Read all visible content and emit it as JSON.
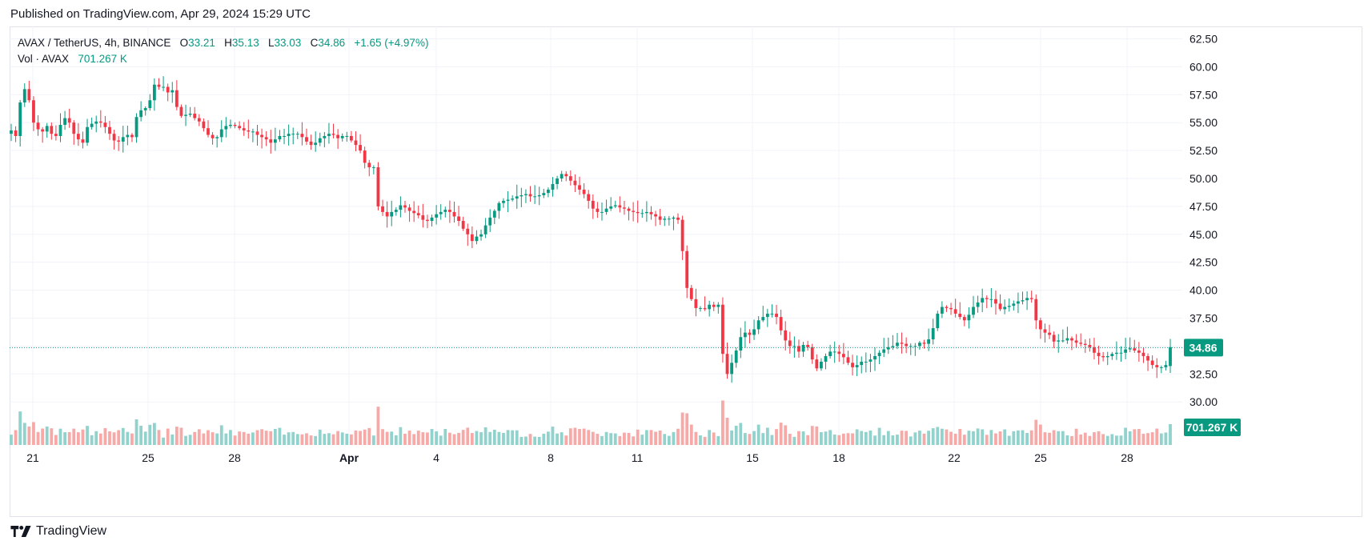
{
  "published": "Published on TradingView.com, Apr 29, 2024 15:29 UTC",
  "footer": {
    "brand": "TradingView",
    "logo_icon": "tradingview-logo-icon"
  },
  "legend": {
    "symbol": "AVAX / TetherUS, 4h, BINANCE",
    "o_label": "O",
    "o_value": "33.21",
    "h_label": "H",
    "h_value": "35.13",
    "l_label": "L",
    "l_value": "33.03",
    "c_label": "C",
    "c_value": "34.86",
    "change": "+1.65 (+4.97%)",
    "vol_label": "Vol · AVAX",
    "vol_value": "701.267 K"
  },
  "colors": {
    "up": "#089981",
    "down": "#f23645",
    "up_vol": "#92d2cc",
    "down_vol": "#f7a9a7",
    "grid": "#f0f3fa",
    "text": "#131722"
  },
  "chart_data": {
    "type": "candlestick",
    "title": "AVAX / TetherUS, 4h, BINANCE",
    "price_axis": {
      "ticks": [
        "62.50",
        "60.00",
        "57.50",
        "55.00",
        "52.50",
        "50.00",
        "47.50",
        "45.00",
        "42.50",
        "40.00",
        "37.50",
        "35.00",
        "32.50",
        "30.00"
      ],
      "range": [
        28.1,
        63.6
      ]
    },
    "time_axis": {
      "labels": [
        "21",
        "25",
        "28",
        "Apr",
        "4",
        "8",
        "11",
        "15",
        "18",
        "22",
        "25",
        "28"
      ]
    },
    "last_price": "34.86",
    "last_volume": "701.267 K",
    "closes": [
      54.3,
      53.8,
      56.8,
      58.0,
      57.0,
      55.0,
      54.4,
      54.2,
      54.7,
      54.0,
      53.8,
      54.8,
      55.4,
      55.0,
      54.0,
      53.5,
      53.2,
      54.6,
      54.9,
      55.1,
      55.0,
      54.6,
      54.0,
      53.4,
      53.3,
      53.7,
      53.9,
      53.7,
      55.5,
      56.1,
      56.3,
      57.0,
      58.4,
      58.2,
      58.2,
      57.7,
      57.9,
      56.4,
      55.6,
      55.7,
      55.8,
      55.4,
      55.1,
      54.5,
      53.9,
      53.6,
      53.7,
      54.4,
      54.7,
      54.8,
      54.7,
      54.5,
      54.3,
      54.2,
      54.2,
      53.9,
      53.7,
      53.5,
      53.2,
      53.5,
      53.8,
      53.8,
      54.0,
      54.0,
      54.0,
      53.7,
      53.3,
      53.0,
      53.2,
      53.6,
      53.8,
      54.0,
      53.9,
      53.6,
      53.8,
      53.8,
      53.4,
      53.0,
      52.5,
      51.4,
      51.0,
      51.0,
      47.5,
      47.0,
      46.6,
      47.0,
      47.2,
      47.6,
      47.4,
      47.1,
      46.9,
      46.7,
      46.3,
      46.2,
      46.5,
      46.8,
      47.0,
      47.2,
      47.0,
      46.6,
      46.2,
      45.5,
      45.0,
      44.4,
      44.8,
      45.0,
      45.8,
      46.5,
      47.1,
      47.8,
      48.0,
      48.1,
      48.2,
      48.4,
      48.5,
      48.6,
      48.4,
      48.4,
      48.5,
      48.7,
      49.0,
      49.5,
      50.0,
      50.4,
      50.2,
      49.8,
      49.4,
      49.0,
      48.6,
      48.0,
      47.3,
      47.0,
      47.0,
      47.3,
      47.5,
      47.6,
      47.4,
      47.3,
      47.1,
      47.0,
      46.9,
      46.9,
      47.0,
      46.8,
      46.6,
      46.3,
      46.4,
      46.4,
      46.5,
      46.3,
      43.5,
      40.2,
      39.2,
      38.4,
      38.4,
      38.3,
      38.7,
      38.5,
      38.7,
      34.3,
      32.5,
      33.5,
      34.6,
      35.8,
      36.2,
      36.0,
      36.5,
      37.3,
      37.6,
      37.9,
      37.9,
      37.6,
      36.4,
      35.5,
      35.0,
      35.0,
      34.5,
      35.1,
      34.9,
      33.8,
      33.0,
      33.6,
      34.1,
      34.5,
      34.5,
      34.3,
      34.0,
      33.5,
      33.1,
      33.3,
      33.6,
      33.6,
      33.8,
      34.1,
      34.4,
      34.7,
      34.9,
      35.0,
      35.3,
      35.2,
      35.0,
      35.0,
      35.0,
      35.3,
      35.2,
      35.6,
      36.6,
      37.9,
      38.5,
      38.4,
      38.3,
      37.9,
      37.6,
      37.3,
      37.8,
      38.5,
      38.9,
      39.3,
      39.2,
      39.2,
      38.8,
      38.3,
      38.5,
      38.6,
      38.8,
      39.0,
      39.1,
      39.3,
      39.2,
      37.3,
      36.5,
      36.2,
      36.0,
      35.4,
      35.5,
      35.5,
      35.7,
      35.5,
      35.3,
      35.2,
      35.1,
      34.9,
      34.4,
      34.1,
      34.0,
      34.1,
      34.3,
      34.4,
      34.4,
      34.7,
      34.8,
      34.6,
      34.4,
      34.1,
      33.7,
      33.3,
      33.1,
      33.1,
      33.3,
      34.9
    ],
    "volume_note": "Volume histogram, last bar 701.267 K"
  }
}
